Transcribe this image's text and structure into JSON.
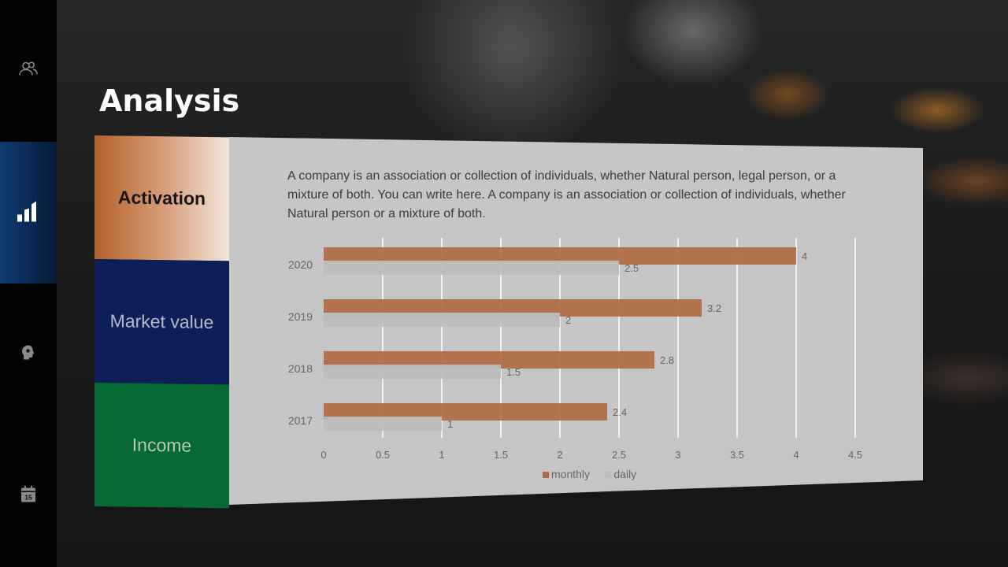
{
  "page": {
    "title": "Analysis"
  },
  "sidebar": {
    "items": [
      {
        "icon": "users-icon",
        "active": false
      },
      {
        "icon": "bar-chart-icon",
        "active": true
      },
      {
        "icon": "head-idea-icon",
        "active": false
      },
      {
        "icon": "calendar-icon",
        "active": false,
        "badge": "15"
      }
    ]
  },
  "tabs": [
    {
      "label": "Activation",
      "active": true,
      "color": "#b4622c"
    },
    {
      "label": "Market value",
      "active": false,
      "color": "#0d1f57"
    },
    {
      "label": "Income",
      "active": false,
      "color": "#066a32"
    }
  ],
  "description": "A company is an association or collection of individuals, whether Natural person, legal person, or a mixture of both. You can write here. A company is an association or collection of individuals, whether Natural person or a mixture of both.",
  "chart_data": {
    "type": "bar",
    "orientation": "horizontal",
    "categories": [
      "2020",
      "2019",
      "2018",
      "2017"
    ],
    "series": [
      {
        "name": "monthly",
        "values": [
          4,
          3.2,
          2.8,
          2.4
        ],
        "color": "#b06a43"
      },
      {
        "name": "daily",
        "values": [
          2.5,
          2,
          1.5,
          1
        ],
        "color": "#bdbdbd"
      }
    ],
    "x_ticks": [
      "0",
      "0.5",
      "1",
      "1.5",
      "2",
      "2.5",
      "3",
      "3.5",
      "4",
      "4.5"
    ],
    "xlim": [
      0,
      4.5
    ],
    "data_labels": true,
    "grid": "vertical",
    "legend": "bottom"
  }
}
